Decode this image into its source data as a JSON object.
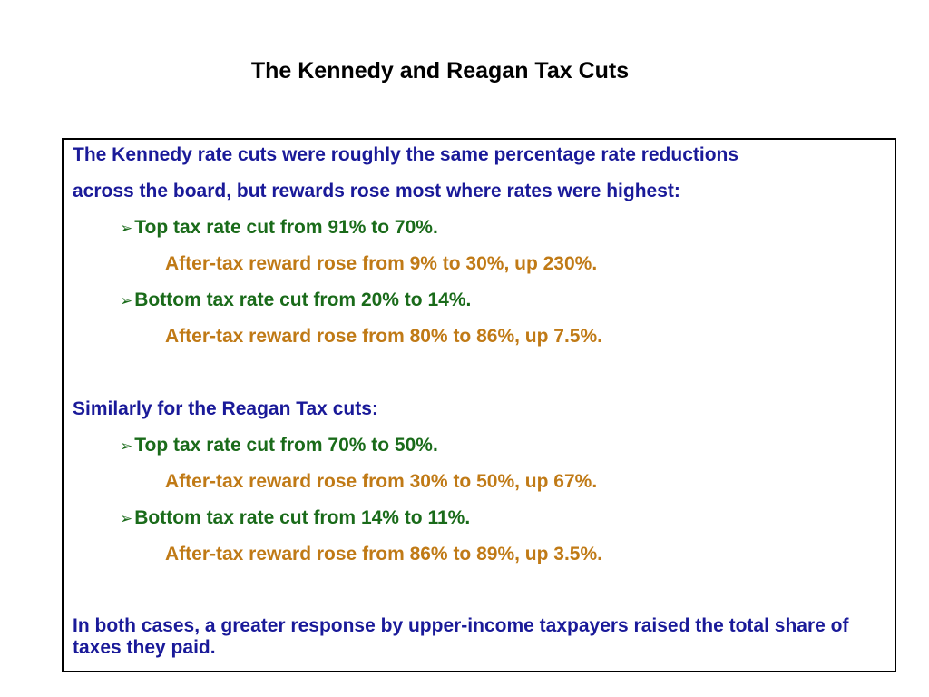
{
  "title": "The Kennedy and Reagan Tax Cuts",
  "colors": {
    "heading_text": "#1a1a99",
    "bullet_text": "#1a6b1a",
    "detail_text": "#c07a16"
  },
  "kennedy": {
    "intro_line1": "The Kennedy rate cuts were roughly the same percentage rate reductions",
    "intro_line2": "across the board, but rewards rose most where rates were highest:",
    "top_cut": "Top tax rate cut from 91% to 70%.",
    "top_reward": "After-tax reward rose from 9% to 30%, up 230%.",
    "bottom_cut": "Bottom tax rate cut from 20% to 14%.",
    "bottom_reward": "After-tax reward rose from 80% to 86%, up 7.5%."
  },
  "reagan": {
    "intro": "Similarly for the Reagan Tax cuts:",
    "top_cut": "Top tax rate cut from 70% to 50%.",
    "top_reward": "After-tax reward rose from 30% to 50%, up 67%.",
    "bottom_cut": "Bottom tax rate cut from 14% to 11%.",
    "bottom_reward": "After-tax reward rose from 86% to 89%, up 3.5%."
  },
  "conclusion": "In both cases, a greater response by upper-income taxpayers raised the total share of taxes they paid.",
  "bullet_icon": "arrowhead-bullet-icon"
}
